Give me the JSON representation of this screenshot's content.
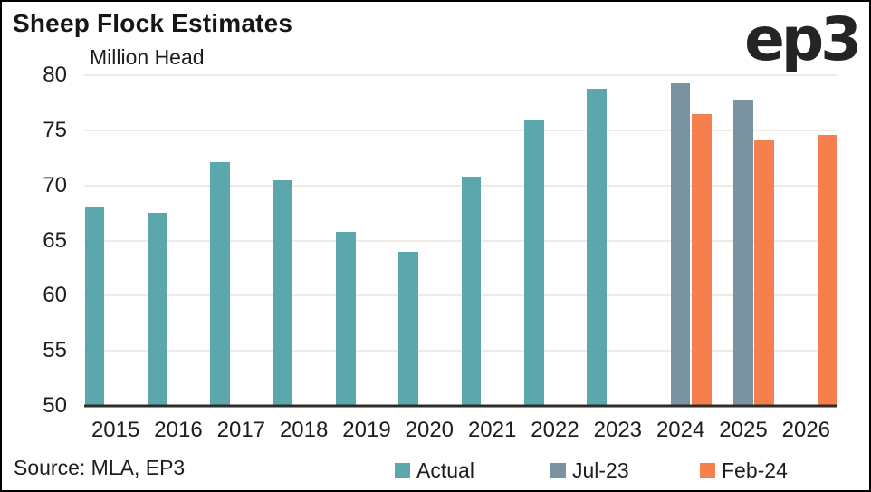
{
  "header": {
    "title": "Sheep Flock Estimates",
    "units_label": "Million Head",
    "logo_text": "ep3"
  },
  "footer": {
    "source": "Source: MLA, EP3"
  },
  "colors": {
    "actual": "#5ba7ab",
    "jul23": "#7b93a0",
    "feb24": "#f5804d",
    "gridline": "#eeece1",
    "axis_line": "#2e2d2b",
    "text": "#1d1d1b",
    "background": "#ffffff",
    "border": "#000000"
  },
  "chart_data": {
    "type": "bar",
    "title": "Sheep Flock Estimates",
    "ylabel": "Million Head",
    "xlabel": "",
    "ylim": [
      50,
      80
    ],
    "yticks": [
      50,
      55,
      60,
      65,
      70,
      75,
      80
    ],
    "grid": "horizontal",
    "legend_position": "bottom",
    "categories": [
      "2015",
      "2016",
      "2017",
      "2018",
      "2019",
      "2020",
      "2021",
      "2022",
      "2023",
      "2024",
      "2025",
      "2026"
    ],
    "series": [
      {
        "name": "Actual",
        "color": "#5ba7ab",
        "values": [
          68.0,
          67.5,
          72.1,
          70.5,
          65.8,
          64.0,
          70.8,
          76.0,
          78.8,
          null,
          null,
          null
        ]
      },
      {
        "name": "Jul-23",
        "color": "#7b93a0",
        "values": [
          null,
          null,
          null,
          null,
          null,
          null,
          null,
          null,
          null,
          79.3,
          77.8,
          null
        ]
      },
      {
        "name": "Feb-24",
        "color": "#f5804d",
        "values": [
          null,
          null,
          null,
          null,
          null,
          null,
          null,
          null,
          null,
          76.5,
          74.1,
          74.6
        ]
      }
    ]
  }
}
